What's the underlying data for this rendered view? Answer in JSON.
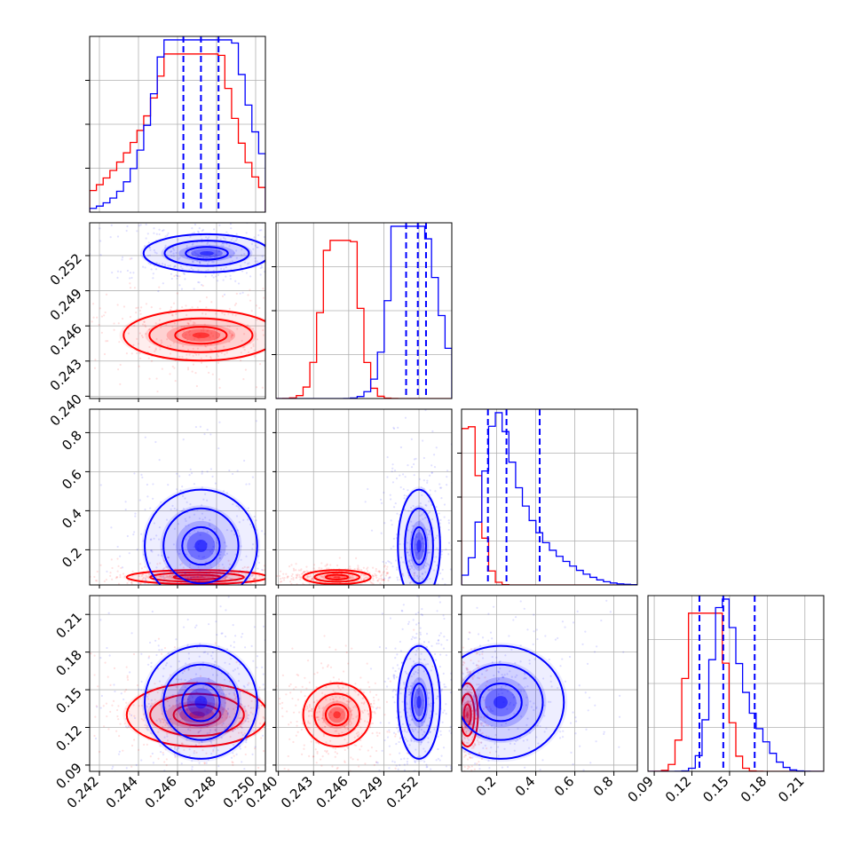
{
  "chart_data": {
    "type": "corner",
    "parameters": 4,
    "series": [
      {
        "name": "",
        "color": "#ff0000"
      },
      {
        "name": "",
        "color": "#0000ff"
      }
    ],
    "grid": true,
    "axes": [
      {
        "index": 0,
        "lim": [
          0.2415,
          0.2505
        ],
        "ticks": [
          0.242,
          0.244,
          0.246,
          0.248,
          0.25
        ],
        "tick_labels": [
          "0.242",
          "0.244",
          "0.246",
          "0.248",
          "0.250"
        ]
      },
      {
        "index": 1,
        "lim": [
          0.2398,
          0.2548
        ],
        "ticks": [
          0.24,
          0.243,
          0.246,
          0.249,
          0.252
        ],
        "tick_labels": [
          "0.240",
          "0.243",
          "0.246",
          "0.249",
          "0.252"
        ]
      },
      {
        "index": 2,
        "lim": [
          0.02,
          0.92
        ],
        "ticks": [
          0.2,
          0.4,
          0.6,
          0.8
        ],
        "tick_labels": [
          "0.2",
          "0.4",
          "0.6",
          "0.8"
        ]
      },
      {
        "index": 3,
        "lim": [
          0.085,
          0.225
        ],
        "ticks": [
          0.09,
          0.12,
          0.15,
          0.18,
          0.21
        ],
        "tick_labels": [
          "0.09",
          "0.12",
          "0.15",
          "0.18",
          "0.21"
        ]
      }
    ],
    "quantiles": [
      {
        "param": 0,
        "values": [
          0.2463,
          0.2472,
          0.2481
        ]
      },
      {
        "param": 1,
        "values": [
          0.2509,
          0.2519,
          0.2526
        ]
      },
      {
        "param": 2,
        "values": [
          0.155,
          0.25,
          0.42
        ]
      },
      {
        "param": 3,
        "values": [
          0.126,
          0.145,
          0.17
        ]
      }
    ],
    "histograms": [
      {
        "param": 0,
        "red": [
          {
            "x": 0.2458,
            "w": 0.0024,
            "h": 0.6
          },
          {
            "x": 0.247,
            "w": 0.0012,
            "h": 0.92
          },
          {
            "x": 0.2483,
            "w": 0.0014,
            "h": 0.1
          }
        ],
        "blue": [
          {
            "x": 0.2472,
            "w": 0.002,
            "h": 1.0
          },
          {
            "x": 0.2462,
            "w": 0.001,
            "h": 0.55
          },
          {
            "x": 0.2483,
            "w": 0.001,
            "h": 0.35
          }
        ]
      },
      {
        "param": 1,
        "red": [
          {
            "x": 0.2452,
            "w": 0.0012,
            "h": 0.88
          },
          {
            "x": 0.2444,
            "w": 0.0008,
            "h": 0.35
          },
          {
            "x": 0.2462,
            "w": 0.0008,
            "h": 0.48
          }
        ],
        "blue": [
          {
            "x": 0.252,
            "w": 0.0016,
            "h": 1.0
          },
          {
            "x": 0.2508,
            "w": 0.0008,
            "h": 0.8
          },
          {
            "x": 0.2498,
            "w": 0.001,
            "h": 0.2
          }
        ]
      },
      {
        "param": 2,
        "red": [
          {
            "x": 0.05,
            "w": 0.04,
            "h": 0.9
          },
          {
            "x": 0.09,
            "w": 0.04,
            "h": 0.3
          },
          {
            "x": 0.13,
            "w": 0.04,
            "h": 0.1
          }
        ],
        "blue": [
          {
            "x": 0.19,
            "w": 0.06,
            "h": 0.23
          },
          {
            "x": 0.27,
            "w": 0.1,
            "h": 0.15
          },
          {
            "x": 0.45,
            "w": 0.15,
            "h": 0.06
          }
        ]
      },
      {
        "param": 3,
        "red": [
          {
            "x": 0.124,
            "w": 0.008,
            "h": 1.0
          },
          {
            "x": 0.132,
            "w": 0.008,
            "h": 0.88
          },
          {
            "x": 0.142,
            "w": 0.008,
            "h": 0.62
          }
        ],
        "blue": [
          {
            "x": 0.142,
            "w": 0.008,
            "h": 0.62
          },
          {
            "x": 0.152,
            "w": 0.01,
            "h": 0.44
          },
          {
            "x": 0.17,
            "w": 0.012,
            "h": 0.2
          }
        ]
      }
    ],
    "density_2d": [
      {
        "x": 0,
        "y": 1,
        "red_center": [
          0.2472,
          0.2452
        ],
        "blue_center": [
          0.2475,
          0.2522
        ],
        "red_spread": [
          0.0022,
          0.0012
        ],
        "blue_spread": [
          0.0018,
          0.0009
        ]
      },
      {
        "x": 0,
        "y": 2,
        "red_center": [
          0.247,
          0.06
        ],
        "blue_center": [
          0.2472,
          0.22
        ],
        "red_spread": [
          0.002,
          0.02
        ],
        "blue_spread": [
          0.0016,
          0.16
        ]
      },
      {
        "x": 0,
        "y": 3,
        "red_center": [
          0.247,
          0.13
        ],
        "blue_center": [
          0.2472,
          0.14
        ],
        "red_spread": [
          0.002,
          0.014
        ],
        "blue_spread": [
          0.0016,
          0.025
        ]
      },
      {
        "x": 1,
        "y": 2,
        "red_center": [
          0.245,
          0.06
        ],
        "blue_center": [
          0.252,
          0.22
        ],
        "red_spread": [
          0.0016,
          0.02
        ],
        "blue_spread": [
          0.001,
          0.16
        ]
      },
      {
        "x": 1,
        "y": 3,
        "red_center": [
          0.245,
          0.13
        ],
        "blue_center": [
          0.252,
          0.14
        ],
        "red_spread": [
          0.0016,
          0.014
        ],
        "blue_spread": [
          0.001,
          0.025
        ]
      },
      {
        "x": 2,
        "y": 3,
        "red_center": [
          0.05,
          0.13
        ],
        "blue_center": [
          0.22,
          0.14
        ],
        "red_spread": [
          0.03,
          0.014
        ],
        "blue_spread": [
          0.18,
          0.025
        ]
      }
    ]
  }
}
